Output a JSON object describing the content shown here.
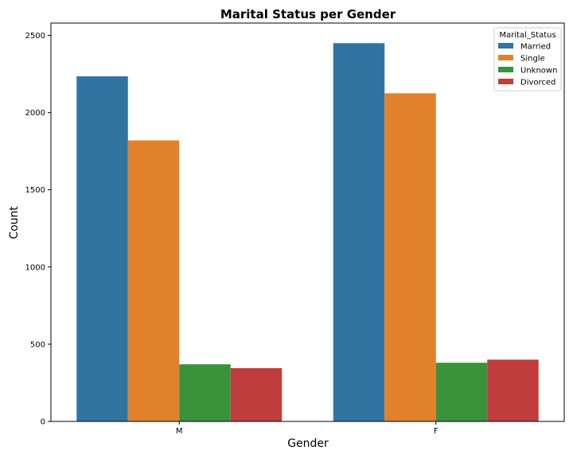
{
  "chart_data": {
    "type": "bar",
    "title": "Marital Status per Gender",
    "xlabel": "Gender",
    "ylabel": "Count",
    "categories": [
      "M",
      "F"
    ],
    "ylim": [
      0,
      2580
    ],
    "yticks": [
      0,
      500,
      1000,
      1500,
      2000,
      2500
    ],
    "grid": false,
    "legend": {
      "title": "Marital_Status",
      "placement": "top-right"
    },
    "series": [
      {
        "name": "Married",
        "color": "#3274a1",
        "values": [
          2235,
          2450
        ]
      },
      {
        "name": "Single",
        "color": "#e1812c",
        "values": [
          1820,
          2125
        ]
      },
      {
        "name": "Unknown",
        "color": "#3a923a",
        "values": [
          370,
          380
        ]
      },
      {
        "name": "Divorced",
        "color": "#c03d3e",
        "values": [
          345,
          400
        ]
      }
    ]
  }
}
